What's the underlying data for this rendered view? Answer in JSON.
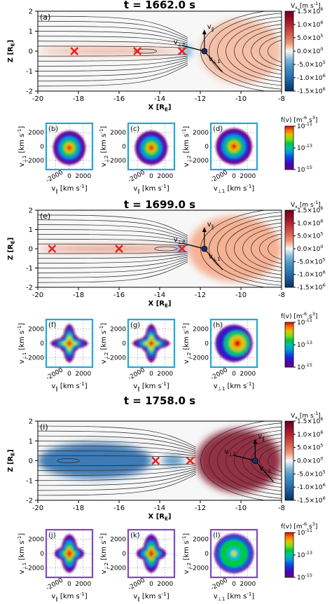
{
  "chart_data": {
    "type": "heatmap",
    "colors": {
      "field_negative": "#1f4e96",
      "field_positive": "#b2182b",
      "field_zero": "#f7f7f7",
      "box_blue": "#21a8d8",
      "box_purple": "#7b4bc4",
      "xpoint": "#e8231c",
      "fieldline": "#222222"
    },
    "field_axes": {
      "xlabel": "X [R",
      "xlabel_sub": "E",
      "ylabel": "Z [R",
      "ylabel_sub": "E",
      "xlim": [
        -20,
        -8
      ],
      "ylim": [
        -2,
        2
      ],
      "xticks": [
        "-20",
        "-18",
        "-16",
        "-14",
        "-12",
        "-10",
        "-8"
      ],
      "yticks": [
        "2",
        "1",
        "0",
        "-1",
        "-2"
      ]
    },
    "colorbar_vx": {
      "label": "V",
      "label_sub": "x",
      "unit": "[m s",
      "unit_sup": "-1",
      "unit_end": "]",
      "ticks": [
        {
          "m": "1.5",
          "e": "6",
          "v": 1.5
        },
        {
          "m": "1.0",
          "e": "6",
          "v": 1.0
        },
        {
          "m": "5.0",
          "e": "5",
          "v": 0.5
        },
        {
          "m": "0.0",
          "e": "0",
          "v": 0.0
        },
        {
          "m": "-5.0",
          "e": "5",
          "v": -0.5
        },
        {
          "m": "-1.0",
          "e": "6",
          "v": -1.0
        },
        {
          "m": "-1.5",
          "e": "6",
          "v": -1.5
        }
      ]
    },
    "colorbar_fv": {
      "label": "f(v) [m",
      "label_sup": "-6",
      "label_end": " s",
      "label_sup2": "3",
      "label_close": "]",
      "ticks": [
        {
          "m": "10",
          "e": "-11",
          "v": 1.0
        },
        {
          "m": "10",
          "e": "-13",
          "v": 0.5
        },
        {
          "m": "10",
          "e": "-15",
          "v": 0.0
        }
      ]
    },
    "vdf_axes": {
      "ticks": [
        "2000",
        "0",
        "-2000"
      ],
      "xticks": [
        "-2000",
        "0",
        "2000"
      ],
      "unit": "[km s",
      "unit_sup": "-1",
      "unit_end": "]"
    },
    "snapshots": [
      {
        "title_prefix": "t = ",
        "time": "1662.0",
        "title_unit": " s",
        "panel": "(a)",
        "xpoints": [
          -18.2,
          -15.1,
          -12.9
        ],
        "islands": [
          -14.7
        ],
        "spacecraft_x": -11.8,
        "box_color": "blue",
        "flow": [
          {
            "x0": -20,
            "x1": -12.9,
            "v": 0.25,
            "hw": 0.12
          },
          {
            "x0": -12.9,
            "x1": -12.4,
            "v": -0.3,
            "hw": 0.3
          },
          {
            "x0": -12.0,
            "x1": -8,
            "v": 0.12,
            "hw": 1.6
          }
        ],
        "vdf": [
          {
            "panel": "(b)",
            "shape": "round",
            "xl": "v",
            "xs": "∥",
            "yl": "v",
            "ys": "⊥1"
          },
          {
            "panel": "(c)",
            "shape": "round",
            "xl": "v",
            "xs": "∥",
            "yl": "v",
            "ys": "⊥2"
          },
          {
            "panel": "(d)",
            "shape": "disk",
            "xl": "v",
            "xs": "⊥1",
            "yl": "v",
            "ys": "⊥2"
          }
        ]
      },
      {
        "title_prefix": "t = ",
        "time": "1699.0",
        "title_unit": " s",
        "panel": "(e)",
        "xpoints": [
          -19.3,
          -16.0,
          -12.9
        ],
        "islands": [
          -13.7
        ],
        "spacecraft_x": -11.8,
        "box_color": "blue",
        "flow": [
          {
            "x0": -20,
            "x1": -13.0,
            "v": 0.3,
            "hw": 0.15
          },
          {
            "x0": -13.2,
            "x1": -12.7,
            "v": -0.6,
            "hw": 0.25
          },
          {
            "x0": -12.6,
            "x1": -8,
            "v": 0.15,
            "hw": 1.7
          }
        ],
        "vdf": [
          {
            "panel": "(f)",
            "shape": "cross",
            "xl": "v",
            "xs": "∥",
            "yl": "v",
            "ys": "⊥1"
          },
          {
            "panel": "(g)",
            "shape": "cross",
            "xl": "v",
            "xs": "∥",
            "yl": "v",
            "ys": "⊥2"
          },
          {
            "panel": "(h)",
            "shape": "crescent",
            "xl": "v",
            "xs": "⊥1",
            "yl": "v",
            "ys": "⊥2"
          }
        ]
      },
      {
        "title_prefix": "t = ",
        "time": "1758.0",
        "title_unit": " s",
        "panel": "(i)",
        "xpoints": [
          -14.2,
          -12.5
        ],
        "islands": [
          -18.5
        ],
        "spacecraft_x": -9.3,
        "box_color": "purple",
        "flow": [
          {
            "x0": -20,
            "x1": -14.4,
            "v": -0.7,
            "hw": 0.9
          },
          {
            "x0": -13.9,
            "x1": -12.8,
            "v": -0.5,
            "hw": 0.25
          },
          {
            "x0": -12.2,
            "x1": -8,
            "v": 0.9,
            "hw": 1.6
          }
        ],
        "vdf": [
          {
            "panel": "(j)",
            "shape": "lobed",
            "xl": "v",
            "xs": "∥",
            "yl": "v",
            "ys": "⊥1"
          },
          {
            "panel": "(k)",
            "shape": "lobed",
            "xl": "v",
            "xs": "∥",
            "yl": "v",
            "ys": "⊥2"
          },
          {
            "panel": "(l)",
            "shape": "ring",
            "xl": "v",
            "xs": "⊥1",
            "yl": "v",
            "ys": "⊥2"
          }
        ]
      }
    ],
    "triad_labels": {
      "par": "v",
      "par_sub": "∥",
      "p1": "v",
      "p1_sub": "⊥1",
      "p2": "v",
      "p2_sub": "⊥2"
    }
  }
}
